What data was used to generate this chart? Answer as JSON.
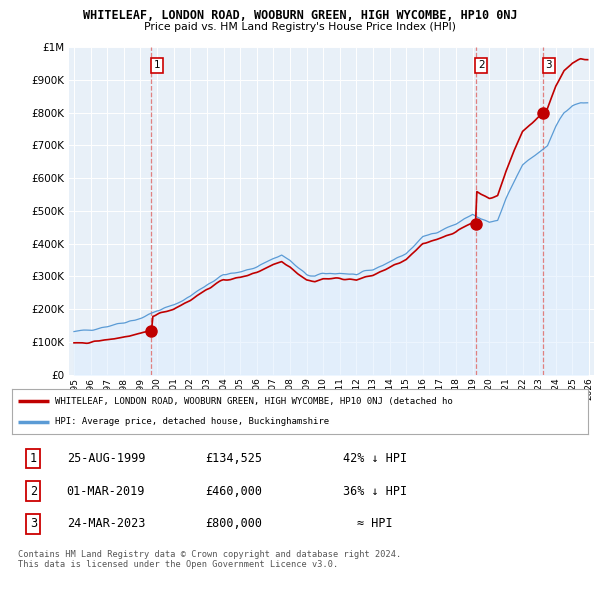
{
  "title": "WHITELEAF, LONDON ROAD, WOOBURN GREEN, HIGH WYCOMBE, HP10 0NJ",
  "subtitle": "Price paid vs. HM Land Registry's House Price Index (HPI)",
  "ylim": [
    0,
    1000000
  ],
  "yticks": [
    0,
    100000,
    200000,
    300000,
    400000,
    500000,
    600000,
    700000,
    800000,
    900000,
    1000000
  ],
  "xlim_start": 1994.7,
  "xlim_end": 2026.3,
  "xticks": [
    1995,
    1996,
    1997,
    1998,
    1999,
    2000,
    2001,
    2002,
    2003,
    2004,
    2005,
    2006,
    2007,
    2008,
    2009,
    2010,
    2011,
    2012,
    2013,
    2014,
    2015,
    2016,
    2017,
    2018,
    2019,
    2020,
    2021,
    2022,
    2023,
    2024,
    2025,
    2026
  ],
  "hpi_color": "#5b9bd5",
  "hpi_fill_color": "#ddeeff",
  "price_color": "#c00000",
  "dashed_color": "#e08080",
  "background_color": "#ffffff",
  "grid_color": "#cccccc",
  "sale_points": [
    {
      "year": 1999.65,
      "price": 134525,
      "label": "1"
    },
    {
      "year": 2019.17,
      "price": 460000,
      "label": "2"
    },
    {
      "year": 2023.23,
      "price": 800000,
      "label": "3"
    }
  ],
  "legend_label_red": "WHITELEAF, LONDON ROAD, WOOBURN GREEN, HIGH WYCOMBE, HP10 0NJ (detached ho",
  "legend_label_blue": "HPI: Average price, detached house, Buckinghamshire",
  "table_data": [
    [
      "1",
      "25-AUG-1999",
      "£134,525",
      "42% ↓ HPI"
    ],
    [
      "2",
      "01-MAR-2019",
      "£460,000",
      "36% ↓ HPI"
    ],
    [
      "3",
      "24-MAR-2023",
      "£800,000",
      "≈ HPI"
    ]
  ],
  "footer": "Contains HM Land Registry data © Crown copyright and database right 2024.\nThis data is licensed under the Open Government Licence v3.0."
}
